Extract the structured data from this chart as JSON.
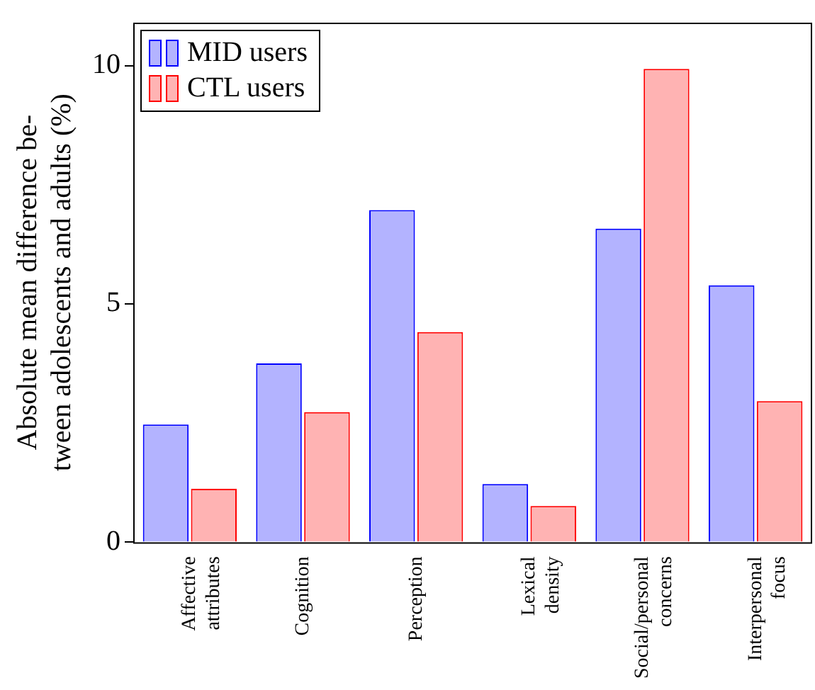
{
  "chart_data": {
    "type": "bar",
    "ylabel": "Absolute mean difference be-\ntween adolescents and adults (%)",
    "categories": [
      "Affective attributes",
      "Cognition",
      "Perception",
      "Lexical density",
      "Social/personal concerns",
      "Interpersonal focus"
    ],
    "series": [
      {
        "name": "MID users",
        "color": "#b3b3ff",
        "values": [
          2.47,
          3.75,
          6.97,
          1.22,
          6.58,
          5.39
        ]
      },
      {
        "name": "CTL users",
        "color": "#ffb3b3",
        "values": [
          1.12,
          2.73,
          4.41,
          0.76,
          9.93,
          2.96
        ]
      }
    ],
    "ylim": [
      0,
      10.9
    ],
    "yticks": [
      0,
      5,
      10
    ],
    "grid": false,
    "legend": "top left"
  }
}
